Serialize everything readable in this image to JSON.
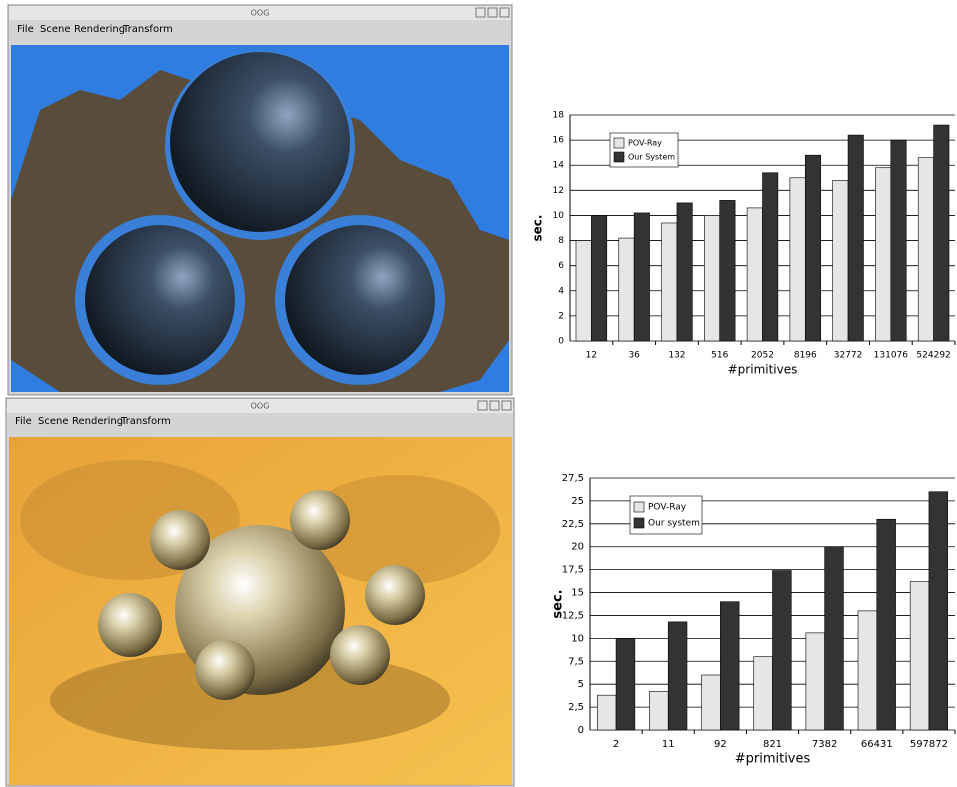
{
  "windows": [
    {
      "title": "OOG",
      "menu": [
        "File",
        "Scene",
        "Rendering",
        "Transform"
      ]
    },
    {
      "title": "OOG",
      "menu": [
        "File",
        "Scene",
        "Rendering",
        "Transform"
      ]
    }
  ],
  "chart_data": [
    {
      "type": "bar",
      "categories": [
        "12",
        "36",
        "132",
        "516",
        "2052",
        "8196",
        "32772",
        "131076",
        "524292"
      ],
      "series": [
        {
          "name": "POV-Ray",
          "color": "#e6e6e6",
          "values": [
            8,
            8.2,
            9.4,
            10,
            10.6,
            13,
            12.8,
            13.8,
            14.6
          ]
        },
        {
          "name": "Our System",
          "color": "#333333",
          "values": [
            10,
            10.2,
            11,
            11.2,
            13.4,
            14.8,
            16.4,
            16,
            17.2
          ]
        }
      ],
      "ylabel": "sec.",
      "xlabel": "#primitives",
      "ylim": [
        0,
        18
      ],
      "yticks": [
        0,
        2,
        4,
        6,
        8,
        10,
        12,
        14,
        16,
        18
      ],
      "grid": true,
      "legend": "upper left"
    },
    {
      "type": "bar",
      "categories": [
        "2",
        "11",
        "92",
        "821",
        "7382",
        "66431",
        "597872"
      ],
      "series": [
        {
          "name": "POV-Ray",
          "color": "#e6e6e6",
          "values": [
            3.8,
            4.2,
            6,
            8,
            10.6,
            13,
            16.2
          ]
        },
        {
          "name": "Our system",
          "color": "#333333",
          "values": [
            10,
            11.8,
            14,
            17.4,
            20,
            23,
            26
          ]
        }
      ],
      "ylabel": "sec.",
      "xlabel": "#primitives",
      "ylim": [
        0,
        27.5
      ],
      "yticks": [
        0,
        {
          "value": 2.5,
          "label": "2,5"
        },
        5,
        {
          "value": 7.5,
          "label": "7,5"
        },
        10,
        {
          "value": 12.5,
          "label": "12,5"
        },
        15,
        {
          "value": 17.5,
          "label": "17,5"
        },
        20,
        {
          "value": 22.5,
          "label": "22,5"
        },
        25,
        {
          "value": 27.5,
          "label": "27,5"
        }
      ],
      "grid": true,
      "legend": "upper left"
    }
  ]
}
